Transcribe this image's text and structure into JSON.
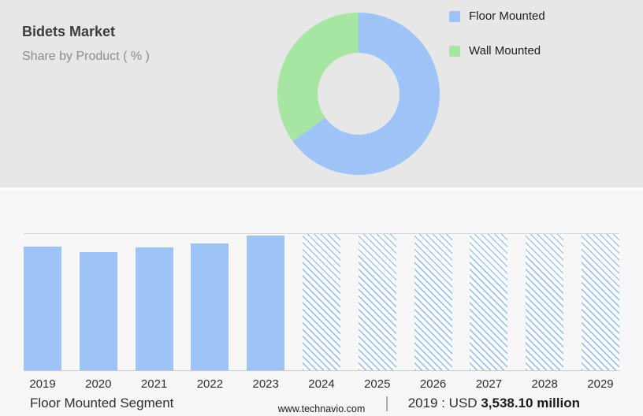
{
  "header": {
    "title": "Bidets Market",
    "subtitle": "Share by Product ( % )"
  },
  "legend": {
    "items": [
      {
        "label": "Floor Mounted",
        "color": "#9ec4f7"
      },
      {
        "label": "Wall Mounted",
        "color": "#a6e6a2"
      }
    ]
  },
  "colors": {
    "floor_mounted_blue": "#9ec4f7",
    "wall_mounted_green": "#a6e6a2",
    "top_panel_bg": "#e7e7e7",
    "bottom_panel_bg": "#f7f7f7"
  },
  "chart_data": [
    {
      "type": "pie",
      "donut": true,
      "title": "Share by Product ( % )",
      "labels": [
        "Floor Mounted",
        "Wall Mounted"
      ],
      "values": [
        65,
        35
      ],
      "colors": [
        "#9ec4f7",
        "#a6e6a2"
      ],
      "legend_position": "right"
    },
    {
      "type": "bar",
      "title": "Floor Mounted Segment market size by year",
      "categories": [
        "2019",
        "2020",
        "2021",
        "2022",
        "2023",
        "2024",
        "2025",
        "2026",
        "2027",
        "2028",
        "2029"
      ],
      "values": [
        91,
        87,
        90,
        93,
        99,
        100,
        100,
        100,
        100,
        100,
        100
      ],
      "value_unit": "percent-of-plot-height (forecast bars reach top gridline)",
      "solid_categories": [
        "2019",
        "2020",
        "2021",
        "2022",
        "2023"
      ],
      "hatched_categories": [
        "2024",
        "2025",
        "2026",
        "2027",
        "2028",
        "2029"
      ],
      "bar_color": "#9ec4f7",
      "grid": "single top gridline and bottom axis line",
      "legend_position": "none"
    }
  ],
  "footer": {
    "segment_label": "Floor Mounted Segment",
    "divider": "|",
    "value_prefix": "2019 : USD",
    "value_bold": "3,538.10 million",
    "website": "www.technavio.com"
  }
}
